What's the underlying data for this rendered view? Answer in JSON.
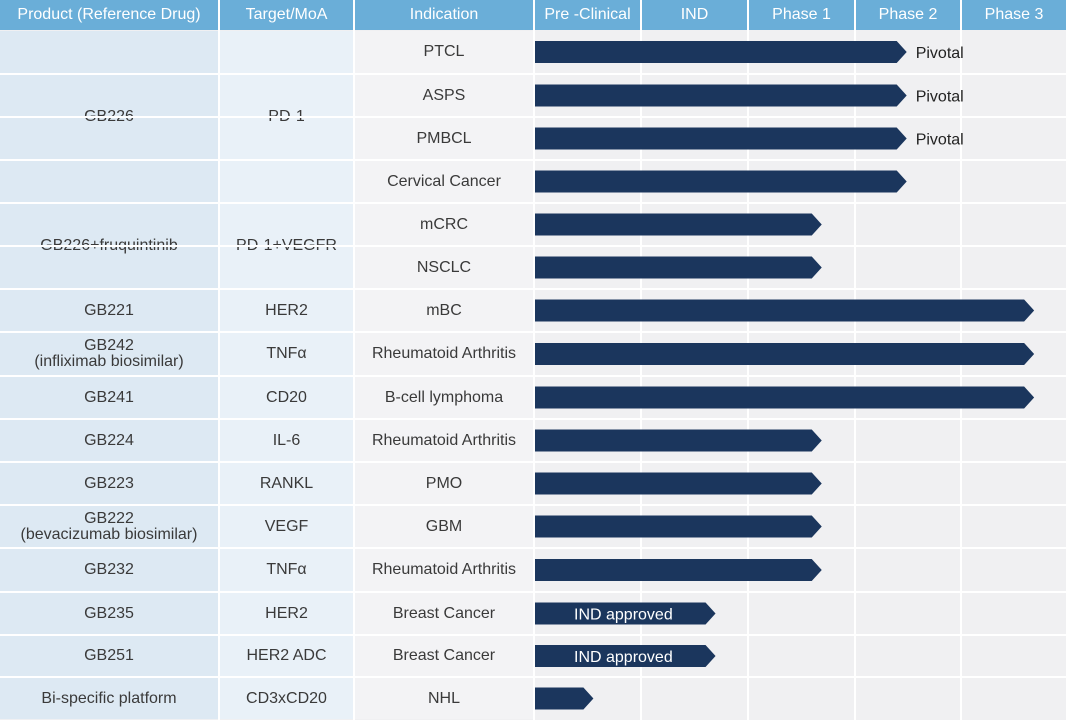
{
  "colors": {
    "header": "#6aaed8",
    "bar": "#1b365d",
    "product_bg": "#dde9f3",
    "target_bg": "#e9f1f8",
    "indication_bg": "#f3f3f5",
    "grid_bg": "#f0f0f2"
  },
  "headers": {
    "product": "Product (Reference Drug)",
    "target": "Target/MoA",
    "indication": "Indication",
    "stages": [
      "Pre -Clinical",
      "IND",
      "Phase 1",
      "Phase 2",
      "Phase 3"
    ]
  },
  "chart_data": {
    "type": "bar",
    "stages": [
      "Pre -Clinical",
      "IND",
      "Phase 1",
      "Phase 2",
      "Phase 3"
    ],
    "groups": [
      {
        "product": "GB226",
        "target": "PD-1"
      },
      {
        "product": "GB226+fruquintinib",
        "target": "PD-1+VEGFR"
      },
      {
        "product": "GB221",
        "target": "HER2"
      },
      {
        "product": "GB242\n(infliximab biosimilar)",
        "target": "TNFα"
      },
      {
        "product": "GB241",
        "target": "CD20"
      },
      {
        "product": "GB224",
        "target": "IL-6"
      },
      {
        "product": "GB223",
        "target": "RANKL"
      },
      {
        "product": "GB222\n(bevacizumab biosimilar)",
        "target": "VEGF"
      },
      {
        "product": "GB232",
        "target": "TNFα"
      },
      {
        "product": "GB235",
        "target": "HER2"
      },
      {
        "product": "GB251",
        "target": "HER2 ADC"
      },
      {
        "product": "Bi-specific platform",
        "target": "CD3xCD20"
      }
    ],
    "rows": [
      {
        "group": 0,
        "indication": "PTCL",
        "progress": 3.5,
        "note": "Pivotal",
        "inner": ""
      },
      {
        "group": 0,
        "indication": "ASPS",
        "progress": 3.5,
        "note": "Pivotal",
        "inner": ""
      },
      {
        "group": 0,
        "indication": "PMBCL",
        "progress": 3.5,
        "note": "Pivotal",
        "inner": ""
      },
      {
        "group": 0,
        "indication": "Cervical Cancer",
        "progress": 3.5,
        "note": "",
        "inner": ""
      },
      {
        "group": 1,
        "indication": "mCRC",
        "progress": 2.7,
        "note": "",
        "inner": ""
      },
      {
        "group": 1,
        "indication": "NSCLC",
        "progress": 2.7,
        "note": "",
        "inner": ""
      },
      {
        "group": 2,
        "indication": "mBC",
        "progress": 4.7,
        "note": "",
        "inner": ""
      },
      {
        "group": 3,
        "indication": "Rheumatoid Arthritis",
        "progress": 4.7,
        "note": "",
        "inner": ""
      },
      {
        "group": 4,
        "indication": "B-cell lymphoma",
        "progress": 4.7,
        "note": "",
        "inner": ""
      },
      {
        "group": 5,
        "indication": "Rheumatoid Arthritis",
        "progress": 2.7,
        "note": "",
        "inner": ""
      },
      {
        "group": 6,
        "indication": "PMO",
        "progress": 2.7,
        "note": "",
        "inner": ""
      },
      {
        "group": 7,
        "indication": "GBM",
        "progress": 2.7,
        "note": "",
        "inner": ""
      },
      {
        "group": 8,
        "indication": "Rheumatoid Arthritis",
        "progress": 2.7,
        "note": "",
        "inner": ""
      },
      {
        "group": 9,
        "indication": "Breast Cancer",
        "progress": 1.7,
        "note": "",
        "inner": "IND approved"
      },
      {
        "group": 10,
        "indication": "Breast Cancer",
        "progress": 1.7,
        "note": "",
        "inner": "IND approved"
      },
      {
        "group": 11,
        "indication": "NHL",
        "progress": 0.55,
        "note": "",
        "inner": ""
      }
    ]
  }
}
